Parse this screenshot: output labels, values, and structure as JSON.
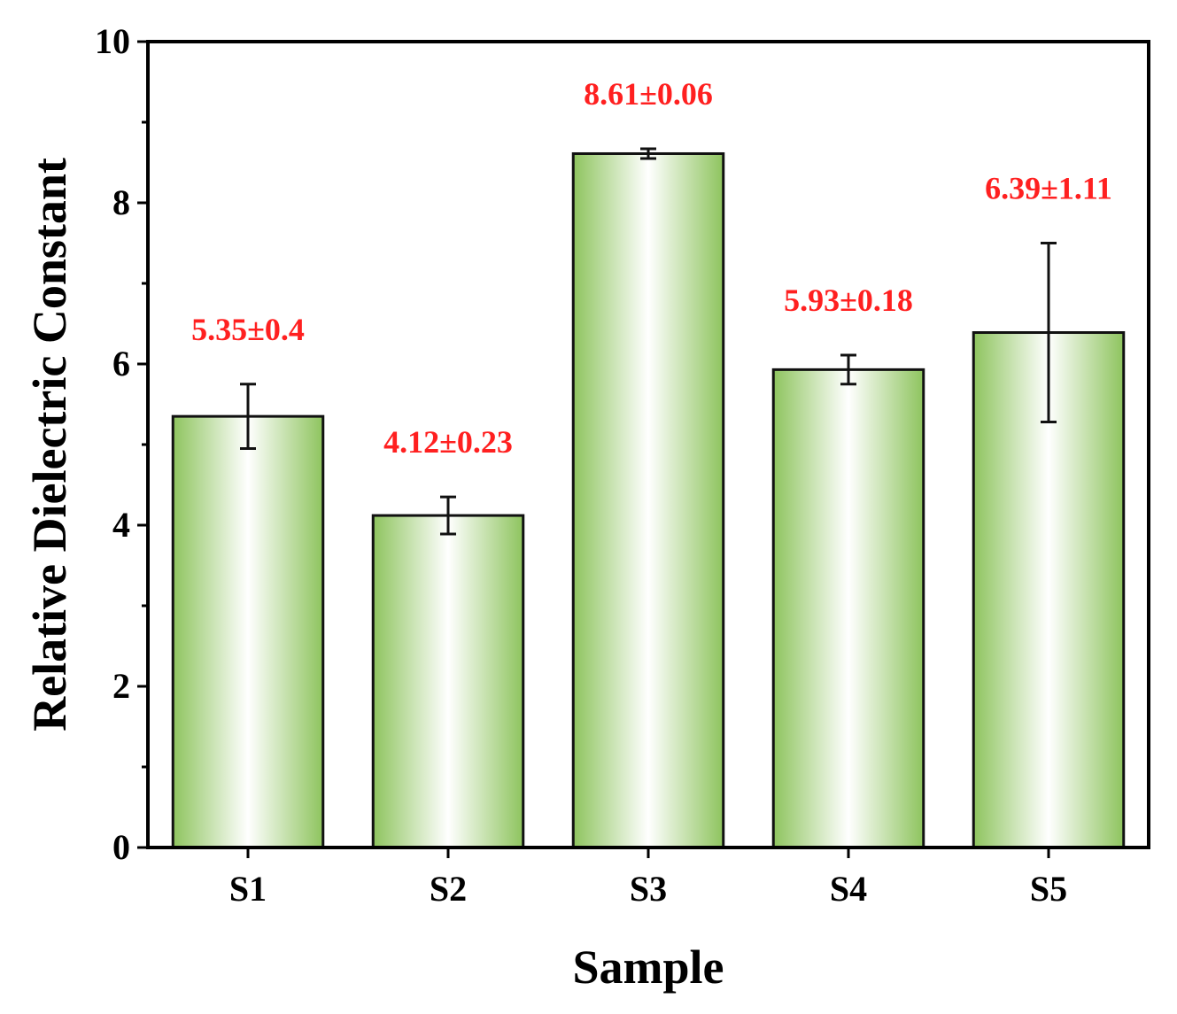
{
  "chart_data": {
    "type": "bar",
    "xlabel": "Sample",
    "ylabel": "Relative Dielectric Constant",
    "categories": [
      "S1",
      "S2",
      "S3",
      "S4",
      "S5"
    ],
    "values": [
      5.35,
      4.12,
      8.61,
      5.93,
      6.39
    ],
    "errors": [
      0.4,
      0.23,
      0.06,
      0.18,
      1.11
    ],
    "data_labels": [
      "5.35±0.4",
      "4.12±0.23",
      "8.61±0.06",
      "5.93±0.18",
      "6.39±1.11"
    ],
    "ylim": [
      0,
      10
    ],
    "yticks": [
      0,
      2,
      4,
      6,
      8,
      10
    ],
    "grid": false,
    "legend": "none",
    "colors": {
      "bar_edge": "#6aa83a",
      "bar_light": "#ffffff",
      "bar_dark": "#8ec45e",
      "label": "#ff2020",
      "axis": "#000000"
    }
  }
}
